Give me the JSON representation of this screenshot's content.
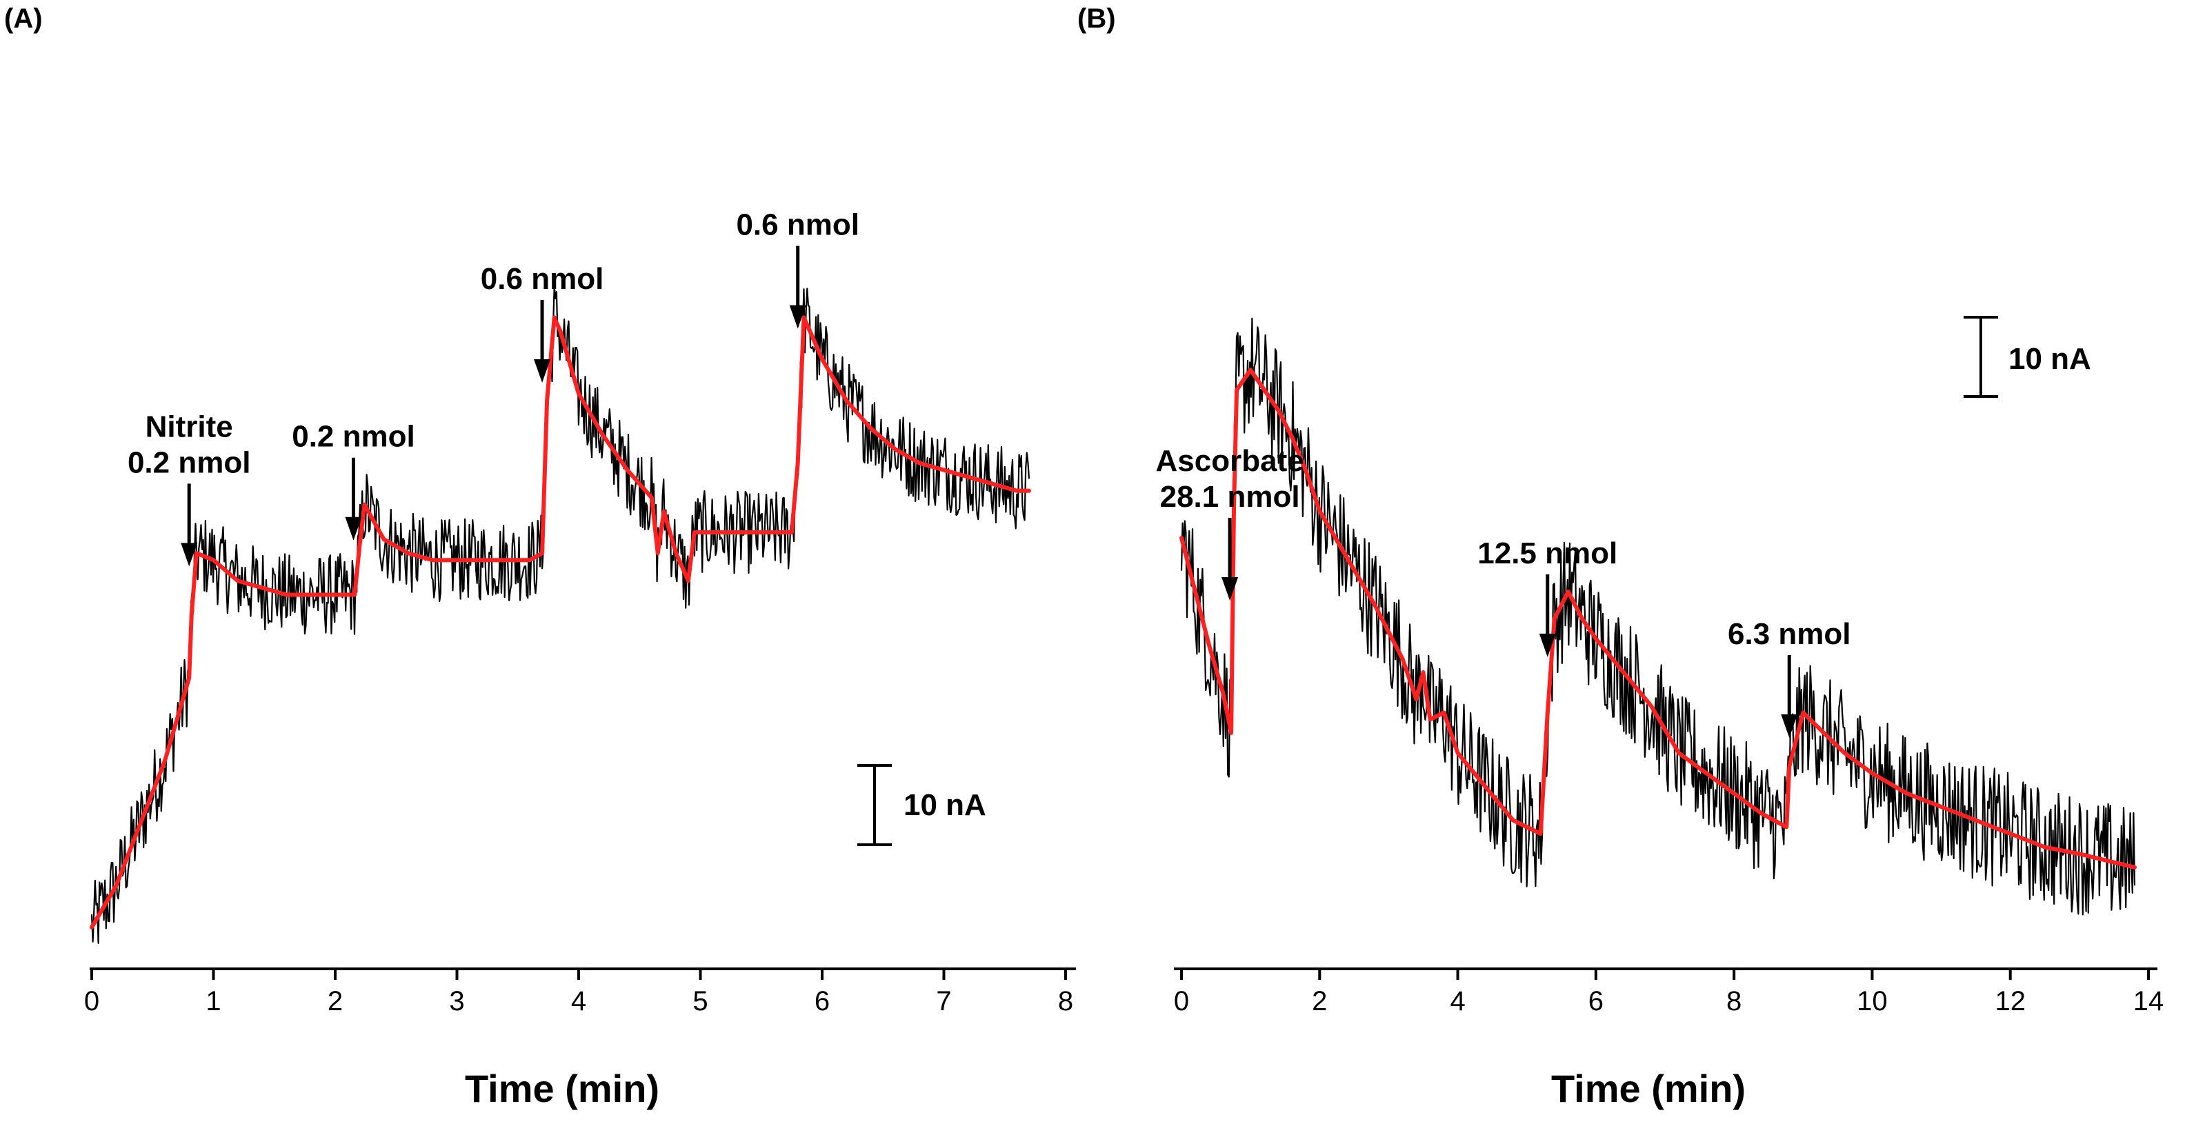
{
  "chart_data": [
    {
      "panel": "(A)",
      "type": "line",
      "title": "",
      "xlabel": "Time (min)",
      "ylabel": "",
      "xlim": [
        0,
        8
      ],
      "xticks": [
        "0",
        "1",
        "2",
        "3",
        "4",
        "5",
        "6",
        "7",
        "8"
      ],
      "ylim": [
        0,
        100
      ],
      "grid": false,
      "legend": "none",
      "series_colors": {
        "raw": "#000000",
        "smoothed": "#ff2020"
      },
      "scale_bar": {
        "label": "10 nA",
        "value_nA": 10
      },
      "series": [
        {
          "name": "",
          "noise": 6,
          "x": [
            0,
            0.2,
            0.4,
            0.6,
            0.8,
            0.82,
            0.86,
            1.0,
            1.2,
            1.4,
            1.6,
            1.8,
            2.0,
            2.16,
            2.2,
            2.24,
            2.4,
            2.6,
            2.8,
            3.0,
            3.2,
            3.4,
            3.6,
            3.7,
            3.74,
            3.8,
            3.85,
            4.0,
            4.2,
            4.4,
            4.6,
            4.65,
            4.7,
            4.8,
            4.9,
            4.95,
            5.0,
            5.2,
            5.4,
            5.6,
            5.75,
            5.8,
            5.85,
            5.9,
            6.0,
            6.2,
            6.4,
            6.6,
            6.8,
            7.0,
            7.2,
            7.4,
            7.6,
            7.7
          ],
          "y": [
            3,
            9,
            18,
            27,
            39,
            48,
            57,
            56,
            53,
            52,
            51,
            51,
            51,
            51,
            58,
            64,
            59,
            57,
            56,
            56,
            56,
            56,
            56,
            57,
            79,
            91,
            89,
            80,
            74,
            69,
            65,
            57,
            63,
            57,
            53,
            60,
            60,
            60,
            60,
            60,
            60,
            70,
            91,
            89,
            85,
            79,
            75,
            72,
            70,
            69,
            68,
            67,
            66,
            66
          ]
        }
      ],
      "annotations": [
        {
          "lines": [
            "Nitrite",
            "0.2 nmol"
          ],
          "x": 0.8
        },
        {
          "lines": [
            "0.2 nmol"
          ],
          "x": 2.15
        },
        {
          "lines": [
            "0.6 nmol"
          ],
          "x": 3.7
        },
        {
          "lines": [
            "0.6 nmol"
          ],
          "x": 5.8
        }
      ]
    },
    {
      "panel": "(B)",
      "type": "line",
      "title": "",
      "xlabel": "Time (min)",
      "ylabel": "",
      "xlim": [
        0,
        14
      ],
      "xticks": [
        "0",
        "2",
        "4",
        "6",
        "8",
        "10",
        "12",
        "14"
      ],
      "ylim": [
        0,
        100
      ],
      "grid": false,
      "legend": "none",
      "series_colors": {
        "raw": "#000000",
        "smoothed": "#ff2020"
      },
      "scale_bar": {
        "label": "10 nA",
        "value_nA": 10
      },
      "series": [
        {
          "name": "",
          "noise": 9,
          "x": [
            0,
            0.2,
            0.4,
            0.6,
            0.72,
            0.76,
            0.8,
            1.0,
            1.2,
            1.4,
            1.6,
            1.8,
            2.0,
            2.4,
            2.8,
            3.2,
            3.4,
            3.5,
            3.6,
            3.8,
            4.0,
            4.4,
            4.8,
            5.2,
            5.3,
            5.4,
            5.6,
            5.8,
            6.0,
            6.4,
            6.8,
            7.2,
            7.6,
            8.0,
            8.4,
            8.76,
            8.8,
            9.0,
            9.2,
            9.6,
            10.0,
            10.5,
            11.0,
            11.5,
            12.0,
            12.5,
            13.0,
            13.4,
            13.8
          ],
          "y": [
            60,
            52,
            44,
            37,
            31,
            65,
            82,
            85,
            82,
            79,
            75,
            70,
            64,
            57,
            50,
            42,
            36,
            40,
            33,
            34,
            28,
            23,
            18,
            16,
            34,
            48,
            52,
            48,
            45,
            40,
            35,
            28,
            25,
            22,
            19,
            17,
            26,
            34,
            32,
            28,
            25,
            22,
            20,
            18,
            16,
            14,
            13,
            12,
            11
          ]
        }
      ],
      "annotations": [
        {
          "lines": [
            "Ascorbate",
            "28.1 nmol"
          ],
          "x": 0.7
        },
        {
          "lines": [
            "12.5 nmol"
          ],
          "x": 5.3
        },
        {
          "lines": [
            "6.3 nmol"
          ],
          "x": 8.8
        }
      ]
    }
  ]
}
